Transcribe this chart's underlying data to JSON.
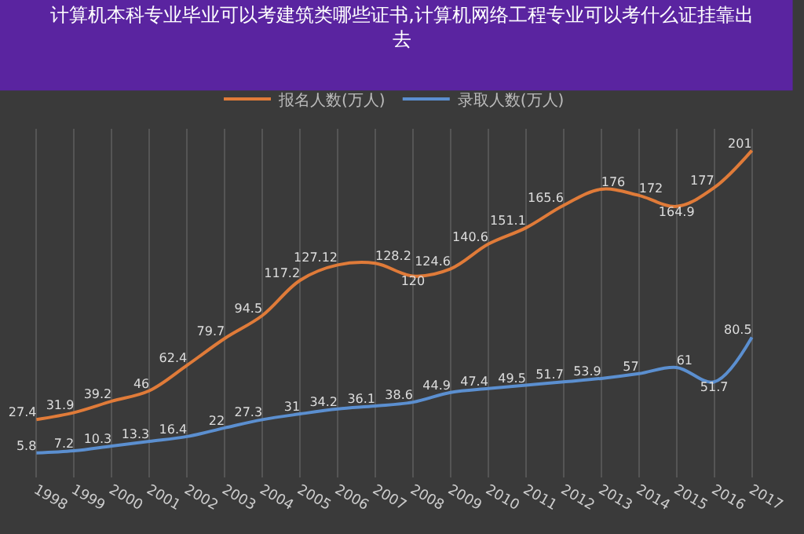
{
  "chart_data": {
    "type": "line",
    "title": "计算机本科专业毕业可以考建筑类哪些证书,计算机网络工程专业可以考什么证挂靠出去",
    "categories": [
      "1998",
      "1999",
      "2000",
      "2001",
      "2002",
      "2003",
      "2004",
      "2005",
      "2006",
      "2007",
      "2008",
      "2009",
      "2010",
      "2011",
      "2012",
      "2013",
      "2014",
      "2015",
      "2016",
      "2017"
    ],
    "series": [
      {
        "name": "报名人数(万人)",
        "color": "#e07b39",
        "values": [
          27.4,
          31.9,
          39.2,
          46,
          62.4,
          79.7,
          94.5,
          117.2,
          127.12,
          128.2,
          120,
          124.6,
          140.6,
          151.1,
          165.6,
          176,
          172,
          164.9,
          177,
          201
        ]
      },
      {
        "name": "录取人数(万人)",
        "color": "#5b8fd0",
        "values": [
          5.8,
          7.2,
          10.3,
          13.3,
          16.4,
          22,
          27.3,
          31,
          34.2,
          36.1,
          38.6,
          44.9,
          47.4,
          49.5,
          51.7,
          53.9,
          57,
          61,
          51.7,
          80.5
        ]
      }
    ],
    "ylim": [
      -10,
      215
    ],
    "data_labels": true,
    "grid": "x",
    "legend": "top",
    "marker": "none",
    "line_style": "solid",
    "tick_labels": "x"
  }
}
